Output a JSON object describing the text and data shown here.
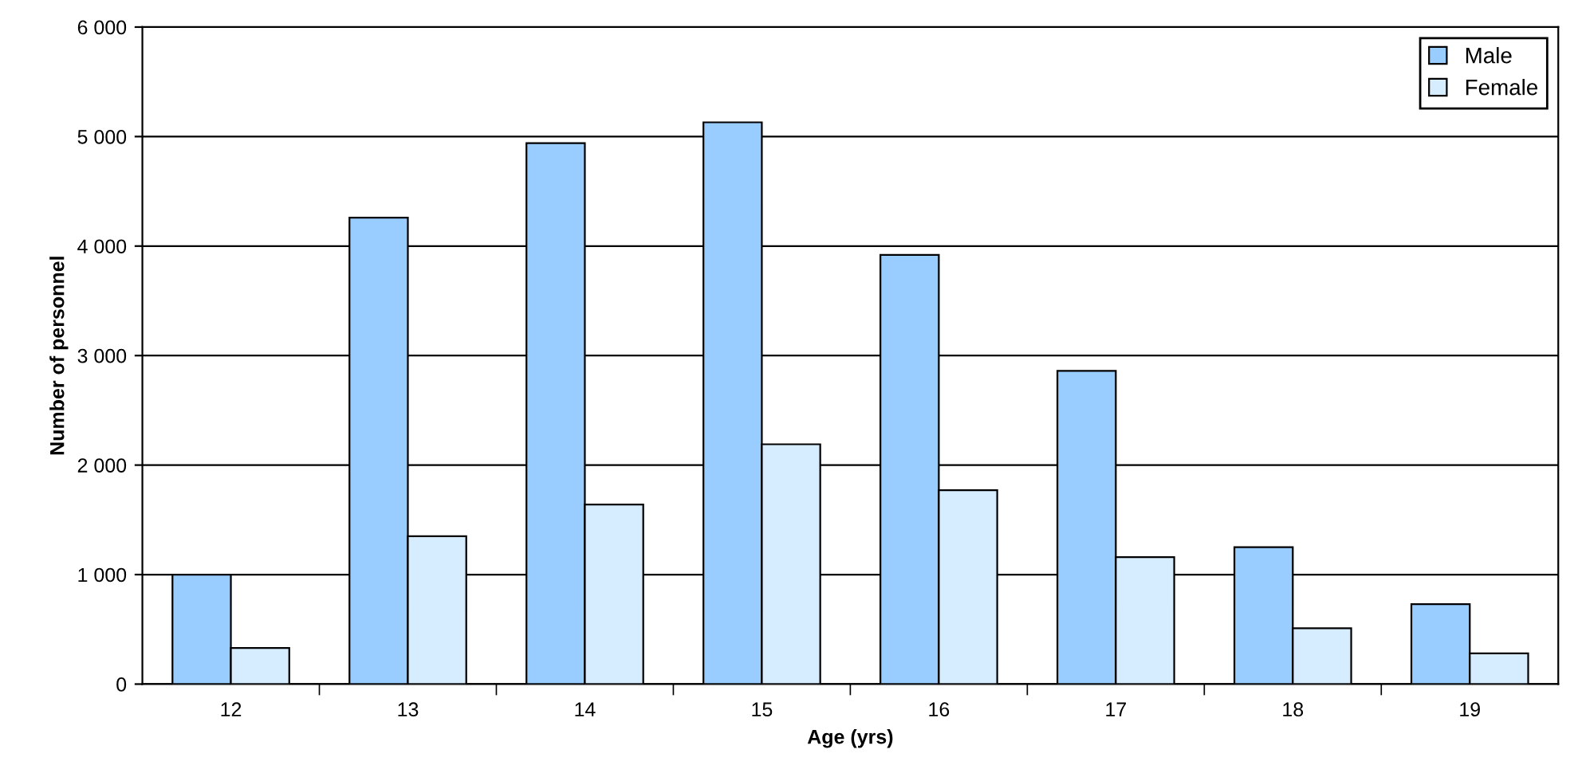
{
  "chart_data": {
    "type": "bar",
    "xlabel": "Age (yrs)",
    "ylabel": "Number of personnel",
    "categories": [
      "12",
      "13",
      "14",
      "15",
      "16",
      "17",
      "18",
      "19"
    ],
    "series": [
      {
        "name": "Male",
        "color": "#99ccff",
        "values": [
          1000,
          4260,
          4940,
          5130,
          3920,
          2860,
          1250,
          730
        ]
      },
      {
        "name": "Female",
        "color": "#d6ecff",
        "values": [
          330,
          1350,
          1640,
          2190,
          1770,
          1160,
          510,
          280
        ]
      }
    ],
    "ylim": [
      0,
      6000
    ],
    "yticks": [
      0,
      {
        "value": 1000,
        "label": "1 000"
      },
      {
        "value": 2000,
        "label": "2 000"
      },
      {
        "value": 3000,
        "label": "3 000"
      },
      {
        "value": 4000,
        "label": "4 000"
      },
      {
        "value": 5000,
        "label": "5 000"
      },
      {
        "value": 6000,
        "label": "6 000"
      }
    ],
    "grid": "y",
    "legend": "top right"
  }
}
